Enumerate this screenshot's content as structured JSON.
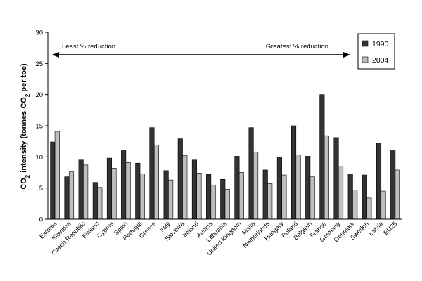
{
  "chart_data": {
    "type": "bar",
    "ylabel": {
      "pre": "CO",
      "sub": "2",
      "mid": " intensity (tonnes CO",
      "sub2": "2",
      "post": " per toe)"
    },
    "ylim": [
      0,
      30
    ],
    "yticks": [
      "0",
      "5",
      "10",
      "15",
      "20",
      "25",
      "30"
    ],
    "grid": false,
    "legend_position": "top-right",
    "categories": [
      "Estonia",
      "Slovakia",
      "Czech Republic",
      "Finland",
      "Cyprus",
      "Spain",
      "Portugal",
      "Greece",
      "Italy",
      "Slovenia",
      "Ireland",
      "Austria",
      "Lithuania",
      "United Kingdom",
      "Malta",
      "Netherlands",
      "Hungary",
      "Poland",
      "Belgium",
      "France",
      "Germany",
      "Denmark",
      "Sweden",
      "Latvia",
      "EU25"
    ],
    "series": [
      {
        "name": "1990",
        "color": "#333333",
        "values": [
          12.4,
          6.8,
          9.5,
          5.9,
          9.8,
          11.0,
          9.0,
          14.7,
          7.8,
          12.9,
          9.5,
          7.2,
          6.4,
          10.1,
          14.7,
          7.9,
          10.0,
          15.0,
          10.1,
          20.0,
          13.1,
          7.3,
          7.1,
          12.2,
          11.0
        ]
      },
      {
        "name": "2004",
        "color": "#bfbfbf",
        "values": [
          14.1,
          7.6,
          8.7,
          5.1,
          8.2,
          9.1,
          7.3,
          11.9,
          6.3,
          10.2,
          7.4,
          5.5,
          4.8,
          7.5,
          10.8,
          5.7,
          7.1,
          10.3,
          6.8,
          13.4,
          8.5,
          4.7,
          3.4,
          4.5,
          7.9
        ]
      }
    ],
    "annotations": {
      "left": "Least % reduction",
      "right": "Greatest % reduction"
    }
  }
}
